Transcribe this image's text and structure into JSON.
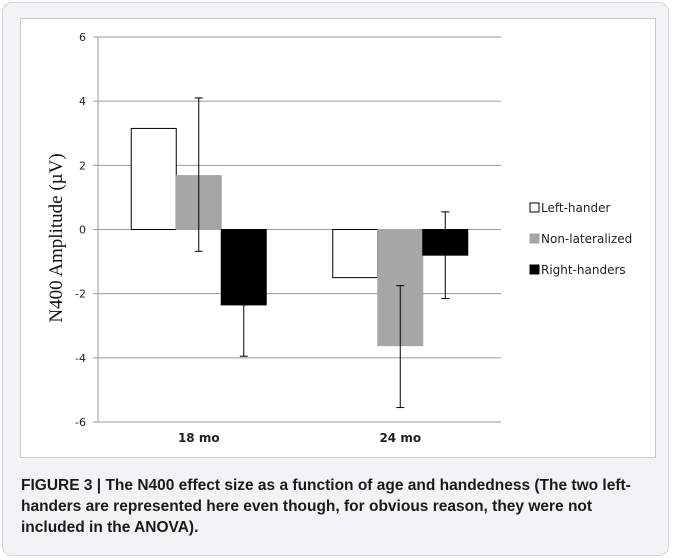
{
  "caption": {
    "label": "FIGURE 3 |",
    "text": "The N400 effect size as a function of age and handedness (The two left-handers are represented here even though, for obvious reason, they were not included in the ANOVA)."
  },
  "chart_data": {
    "type": "bar",
    "title": "",
    "xlabel": "",
    "ylabel": "N400 Amplitude (µV)",
    "ylim": [
      -6,
      6
    ],
    "yticks": [
      6,
      4,
      2,
      0,
      -2,
      -4,
      -6
    ],
    "grid": true,
    "legend_position": "right",
    "categories": [
      "18 mo",
      "24 mo"
    ],
    "series": [
      {
        "name": "Left-hander",
        "values": [
          3.15,
          -1.5
        ],
        "error_high": [
          null,
          null
        ],
        "error_low": [
          null,
          null
        ],
        "color": "#ffffff",
        "stroke": "#000000"
      },
      {
        "name": "Non-lateralized",
        "values": [
          1.68,
          -3.62
        ],
        "error_high": [
          4.1,
          -1.75
        ],
        "error_low": [
          -0.68,
          -5.55
        ],
        "color": "#a6a6a6",
        "stroke": "#a6a6a6"
      },
      {
        "name": "Right-handers",
        "values": [
          -2.35,
          -0.8
        ],
        "error_high": [
          -2.35,
          0.55
        ],
        "error_low": [
          -3.95,
          -2.15
        ],
        "color": "#000000",
        "stroke": "#000000"
      }
    ]
  }
}
